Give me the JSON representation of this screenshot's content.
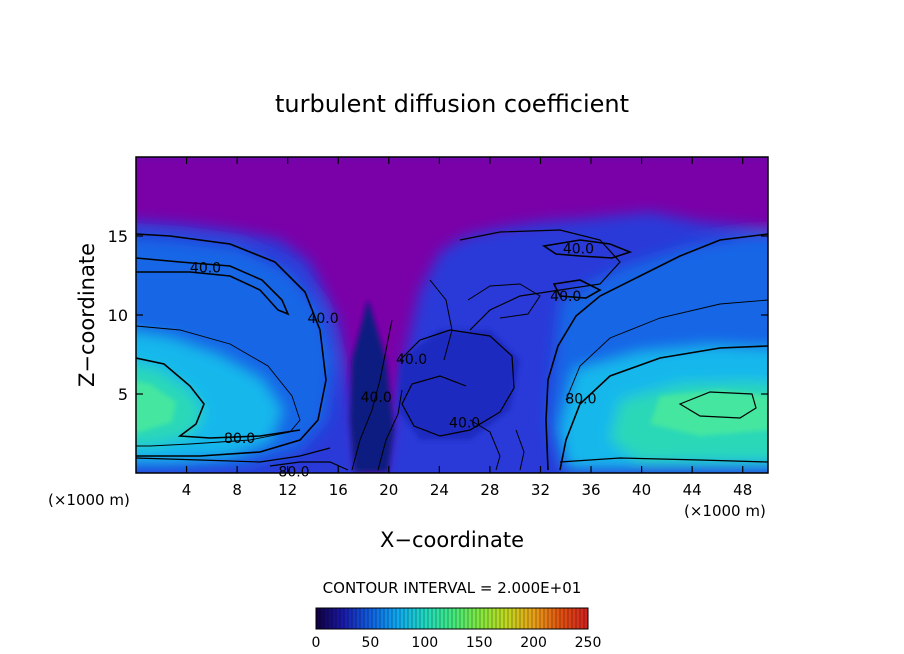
{
  "chart_data": {
    "type": "heatmap",
    "title": "turbulent diffusion coefficient",
    "xlabel": "X−coordinate",
    "ylabel": "Z−coordinate",
    "x_unit_left": "(×1000 m)",
    "x_unit_right": "(×1000 m)",
    "xlim": [
      0,
      50
    ],
    "ylim": [
      0,
      20
    ],
    "xticks": [
      4,
      8,
      12,
      16,
      20,
      24,
      28,
      32,
      36,
      40,
      44,
      48
    ],
    "yticks": [
      5,
      10,
      15
    ],
    "contour_interval_text": "CONTOUR INTERVAL = 2.000E+01",
    "colorbar": {
      "min": 0,
      "max": 250,
      "ticks": [
        0,
        50,
        100,
        150,
        200,
        250
      ],
      "colors": [
        "#100040",
        "#1a1aa8",
        "#1060e0",
        "#10a8f0",
        "#20d8c0",
        "#40e880",
        "#80e840",
        "#c0d820",
        "#e8a018",
        "#e05010",
        "#d02020"
      ]
    },
    "contour_labels": [
      {
        "text": "40.0",
        "x": 5.5,
        "z": 13.0
      },
      {
        "text": "40.0",
        "x": 14.8,
        "z": 9.8
      },
      {
        "text": "80.0",
        "x": 8.2,
        "z": 2.2
      },
      {
        "text": "80.0",
        "x": 12.5,
        "z": 0.1
      },
      {
        "text": "40.0",
        "x": 19.0,
        "z": 4.8
      },
      {
        "text": "40.0",
        "x": 21.8,
        "z": 7.2
      },
      {
        "text": "40.0",
        "x": 26.0,
        "z": 3.2
      },
      {
        "text": "40.0",
        "x": 35.0,
        "z": 14.2
      },
      {
        "text": "40.0",
        "x": 34.0,
        "z": 11.2
      },
      {
        "text": "80.0",
        "x": 35.2,
        "z": 4.7
      }
    ]
  }
}
